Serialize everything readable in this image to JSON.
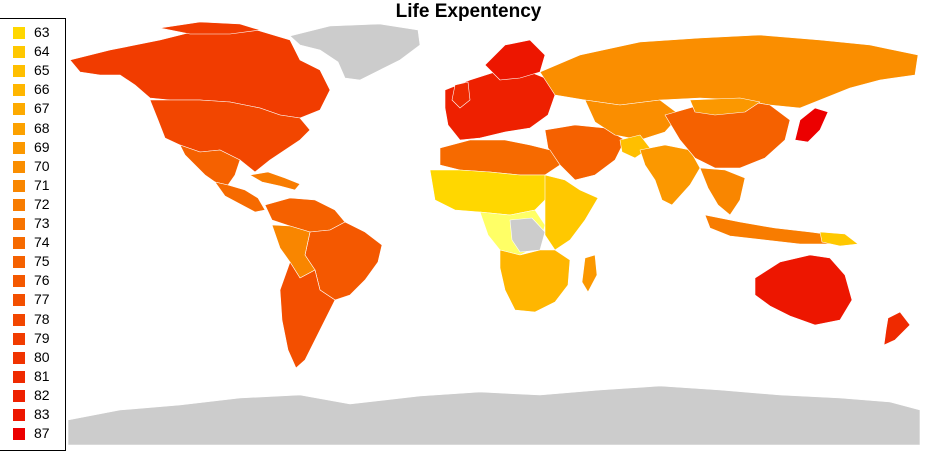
{
  "title": "Life Expentency",
  "legend": {
    "items": [
      {
        "label": "63",
        "color": "#ffd700"
      },
      {
        "label": "64",
        "color": "#ffc800"
      },
      {
        "label": "65",
        "color": "#ffbf00"
      },
      {
        "label": "66",
        "color": "#ffb600"
      },
      {
        "label": "67",
        "color": "#fdaa00"
      },
      {
        "label": "68",
        "color": "#fca100"
      },
      {
        "label": "69",
        "color": "#fb9800"
      },
      {
        "label": "70",
        "color": "#fa8e00"
      },
      {
        "label": "71",
        "color": "#f98600"
      },
      {
        "label": "72",
        "color": "#f87c00"
      },
      {
        "label": "73",
        "color": "#f77300"
      },
      {
        "label": "74",
        "color": "#f66a00"
      },
      {
        "label": "75",
        "color": "#f56100"
      },
      {
        "label": "76",
        "color": "#f45800"
      },
      {
        "label": "77",
        "color": "#f34f00"
      },
      {
        "label": "78",
        "color": "#f24600"
      },
      {
        "label": "79",
        "color": "#f13c00"
      },
      {
        "label": "80",
        "color": "#f03300"
      },
      {
        "label": "81",
        "color": "#ef2a00"
      },
      {
        "label": "82",
        "color": "#ee2000"
      },
      {
        "label": "83",
        "color": "#ed1600"
      },
      {
        "label": "87",
        "color": "#ec0000"
      }
    ]
  },
  "map_colors": {
    "no_data": "#cccccc",
    "borders": "#ffffff"
  }
}
